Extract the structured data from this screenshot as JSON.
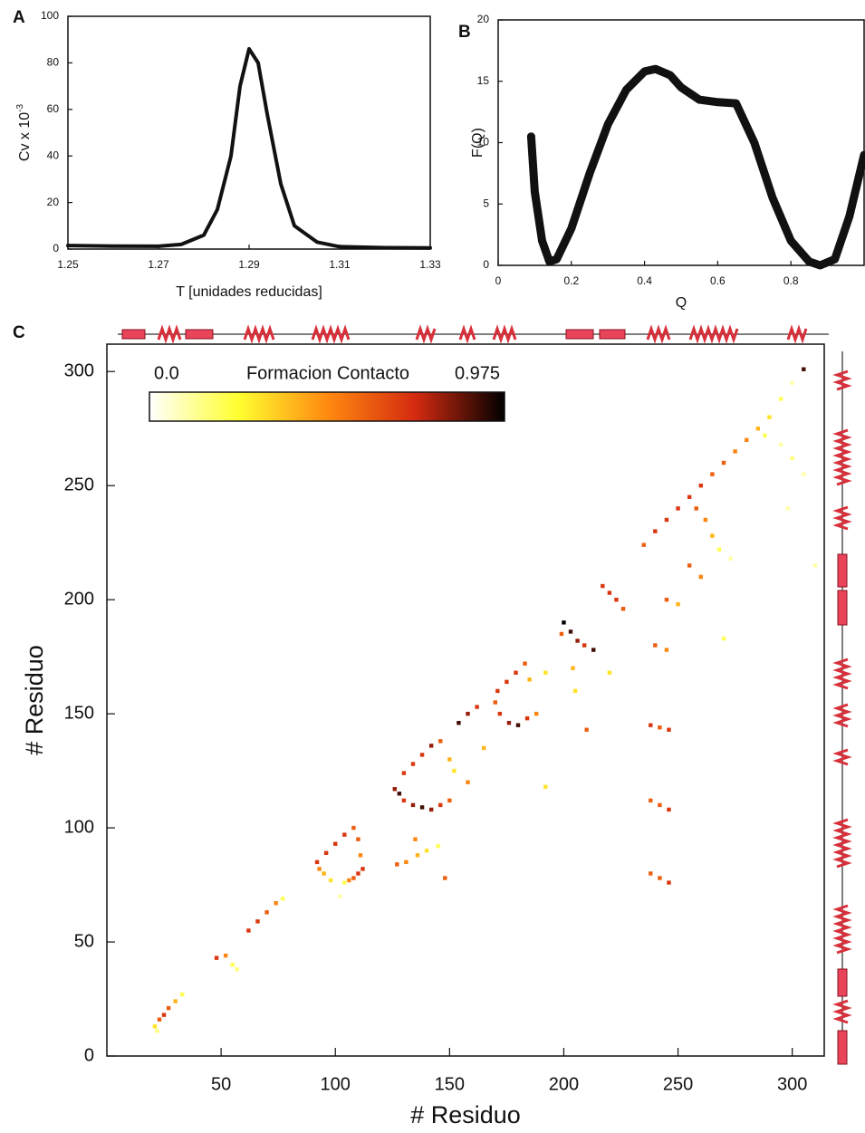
{
  "chart_data": [
    {
      "type": "line",
      "panel": "A",
      "xlabel": "T [unidades reducidas]",
      "ylabel": "Cv x 10",
      "ylabel_exponent": "-3",
      "x": [
        1.25,
        1.26,
        1.27,
        1.275,
        1.28,
        1.283,
        1.286,
        1.288,
        1.29,
        1.292,
        1.294,
        1.297,
        1.3,
        1.305,
        1.31,
        1.32,
        1.33
      ],
      "values": [
        1.5,
        1.3,
        1.2,
        2,
        6,
        17,
        40,
        70,
        86,
        80,
        58,
        28,
        10,
        3,
        1,
        0.6,
        0.5
      ],
      "color": "#111111",
      "xlim": [
        1.25,
        1.33
      ],
      "xticks": [
        1.25,
        1.27,
        1.29,
        1.31,
        1.33
      ],
      "ylim": [
        0,
        100
      ],
      "yticks": [
        0,
        20,
        40,
        60,
        80,
        100
      ]
    },
    {
      "type": "line",
      "panel": "B",
      "xlabel": "Q",
      "ylabel": "F(Q)",
      "x": [
        0.09,
        0.1,
        0.12,
        0.14,
        0.16,
        0.2,
        0.25,
        0.3,
        0.35,
        0.4,
        0.43,
        0.47,
        0.5,
        0.55,
        0.6,
        0.65,
        0.7,
        0.75,
        0.8,
        0.85,
        0.88,
        0.92,
        0.96,
        1.0
      ],
      "values": [
        10.5,
        6,
        2,
        0.3,
        0.5,
        3,
        7.5,
        11.5,
        14.3,
        15.8,
        16,
        15.5,
        14.5,
        13.5,
        13.3,
        13.2,
        10,
        5.5,
        2,
        0.3,
        0,
        0.5,
        4,
        9
      ],
      "color": "#111111",
      "xlim": [
        0,
        1
      ],
      "xticks": [
        0,
        0.2,
        0.4,
        0.6,
        0.8
      ],
      "ylim": [
        0,
        20
      ],
      "yticks": [
        0,
        5,
        10,
        15,
        20
      ]
    },
    {
      "type": "heatmap",
      "panel": "C",
      "xlabel": "# Residuo",
      "ylabel": "# Residuo",
      "colorbar_title": "Formacion Contacto",
      "colorbar_ticks": [
        {
          "value": 0,
          "label": "0.0"
        },
        0.975
      ],
      "xlim": [
        0,
        314
      ],
      "xticks": [
        50,
        100,
        150,
        200,
        250,
        300
      ],
      "ylim": [
        0,
        312
      ],
      "yticks": [
        0,
        50,
        100,
        150,
        200,
        250,
        300
      ],
      "x": [
        21,
        23,
        25,
        27,
        30,
        33,
        22,
        48,
        52,
        55,
        57,
        62,
        66,
        70,
        74,
        77,
        92,
        96,
        100,
        104,
        108,
        93,
        95,
        98,
        102,
        104,
        106,
        108,
        110,
        112,
        111,
        110,
        126,
        128,
        130,
        134,
        138,
        142,
        146,
        150,
        130,
        134,
        138,
        142,
        146,
        127,
        131,
        136,
        140,
        135,
        145,
        148,
        154,
        158,
        162,
        150,
        152,
        158,
        165,
        171,
        175,
        179,
        183,
        170,
        172,
        176,
        180,
        184,
        188,
        185,
        192,
        192,
        200,
        203,
        206,
        209,
        213,
        199,
        210,
        204,
        205,
        220,
        217,
        220,
        223,
        226,
        235,
        240,
        245,
        250,
        255,
        260,
        265,
        270,
        275,
        280,
        285,
        290,
        295,
        300,
        305,
        258,
        262,
        265,
        268,
        273,
        255,
        260,
        240,
        245,
        250,
        245,
        270,
        238,
        242,
        246,
        238,
        242,
        246,
        238,
        242,
        246,
        288,
        295,
        300,
        305,
        310,
        298
      ],
      "y": [
        13,
        16,
        18,
        21,
        24,
        27,
        11,
        43,
        44,
        40,
        38,
        55,
        59,
        63,
        67,
        69,
        85,
        89,
        93,
        97,
        100,
        82,
        80,
        77,
        70,
        76,
        77,
        78,
        80,
        82,
        88,
        95,
        117,
        115,
        112,
        110,
        109,
        108,
        110,
        112,
        124,
        128,
        132,
        136,
        138,
        84,
        85,
        88,
        90,
        95,
        92,
        78,
        146,
        150,
        153,
        130,
        125,
        120,
        135,
        160,
        164,
        168,
        172,
        155,
        150,
        146,
        145,
        148,
        150,
        165,
        168,
        118,
        190,
        186,
        182,
        180,
        178,
        185,
        143,
        170,
        160,
        168,
        206,
        203,
        200,
        196,
        224,
        230,
        235,
        240,
        245,
        250,
        255,
        260,
        265,
        270,
        275,
        280,
        288,
        295,
        301,
        240,
        235,
        228,
        222,
        218,
        215,
        210,
        180,
        178,
        198,
        200,
        183,
        145,
        144,
        143,
        112,
        110,
        108,
        80,
        78,
        76,
        272,
        268,
        262,
        255,
        215,
        240
      ],
      "values": [
        0.3,
        0.6,
        0.7,
        0.6,
        0.4,
        0.2,
        0.15,
        0.7,
        0.5,
        0.2,
        0.15,
        0.7,
        0.7,
        0.6,
        0.5,
        0.2,
        0.7,
        0.7,
        0.7,
        0.7,
        0.6,
        0.5,
        0.4,
        0.3,
        0.1,
        0.2,
        0.5,
        0.6,
        0.7,
        0.7,
        0.5,
        0.6,
        0.8,
        0.9,
        0.7,
        0.8,
        0.9,
        0.8,
        0.7,
        0.6,
        0.7,
        0.7,
        0.7,
        0.8,
        0.6,
        0.6,
        0.5,
        0.4,
        0.3,
        0.5,
        0.2,
        0.6,
        0.9,
        0.8,
        0.7,
        0.4,
        0.3,
        0.5,
        0.4,
        0.7,
        0.7,
        0.7,
        0.6,
        0.6,
        0.7,
        0.8,
        0.9,
        0.7,
        0.5,
        0.4,
        0.3,
        0.3,
        0.975,
        0.9,
        0.8,
        0.7,
        0.9,
        0.6,
        0.6,
        0.4,
        0.3,
        0.3,
        0.7,
        0.7,
        0.7,
        0.6,
        0.6,
        0.7,
        0.7,
        0.7,
        0.7,
        0.7,
        0.6,
        0.6,
        0.5,
        0.5,
        0.4,
        0.3,
        0.2,
        0.1,
        0.9,
        0.6,
        0.5,
        0.4,
        0.2,
        0.1,
        0.6,
        0.5,
        0.6,
        0.5,
        0.4,
        0.6,
        0.2,
        0.7,
        0.6,
        0.7,
        0.6,
        0.6,
        0.7,
        0.6,
        0.6,
        0.7,
        0.2,
        0.1,
        0.15,
        0.1,
        0.1,
        0.1
      ]
    }
  ]
}
